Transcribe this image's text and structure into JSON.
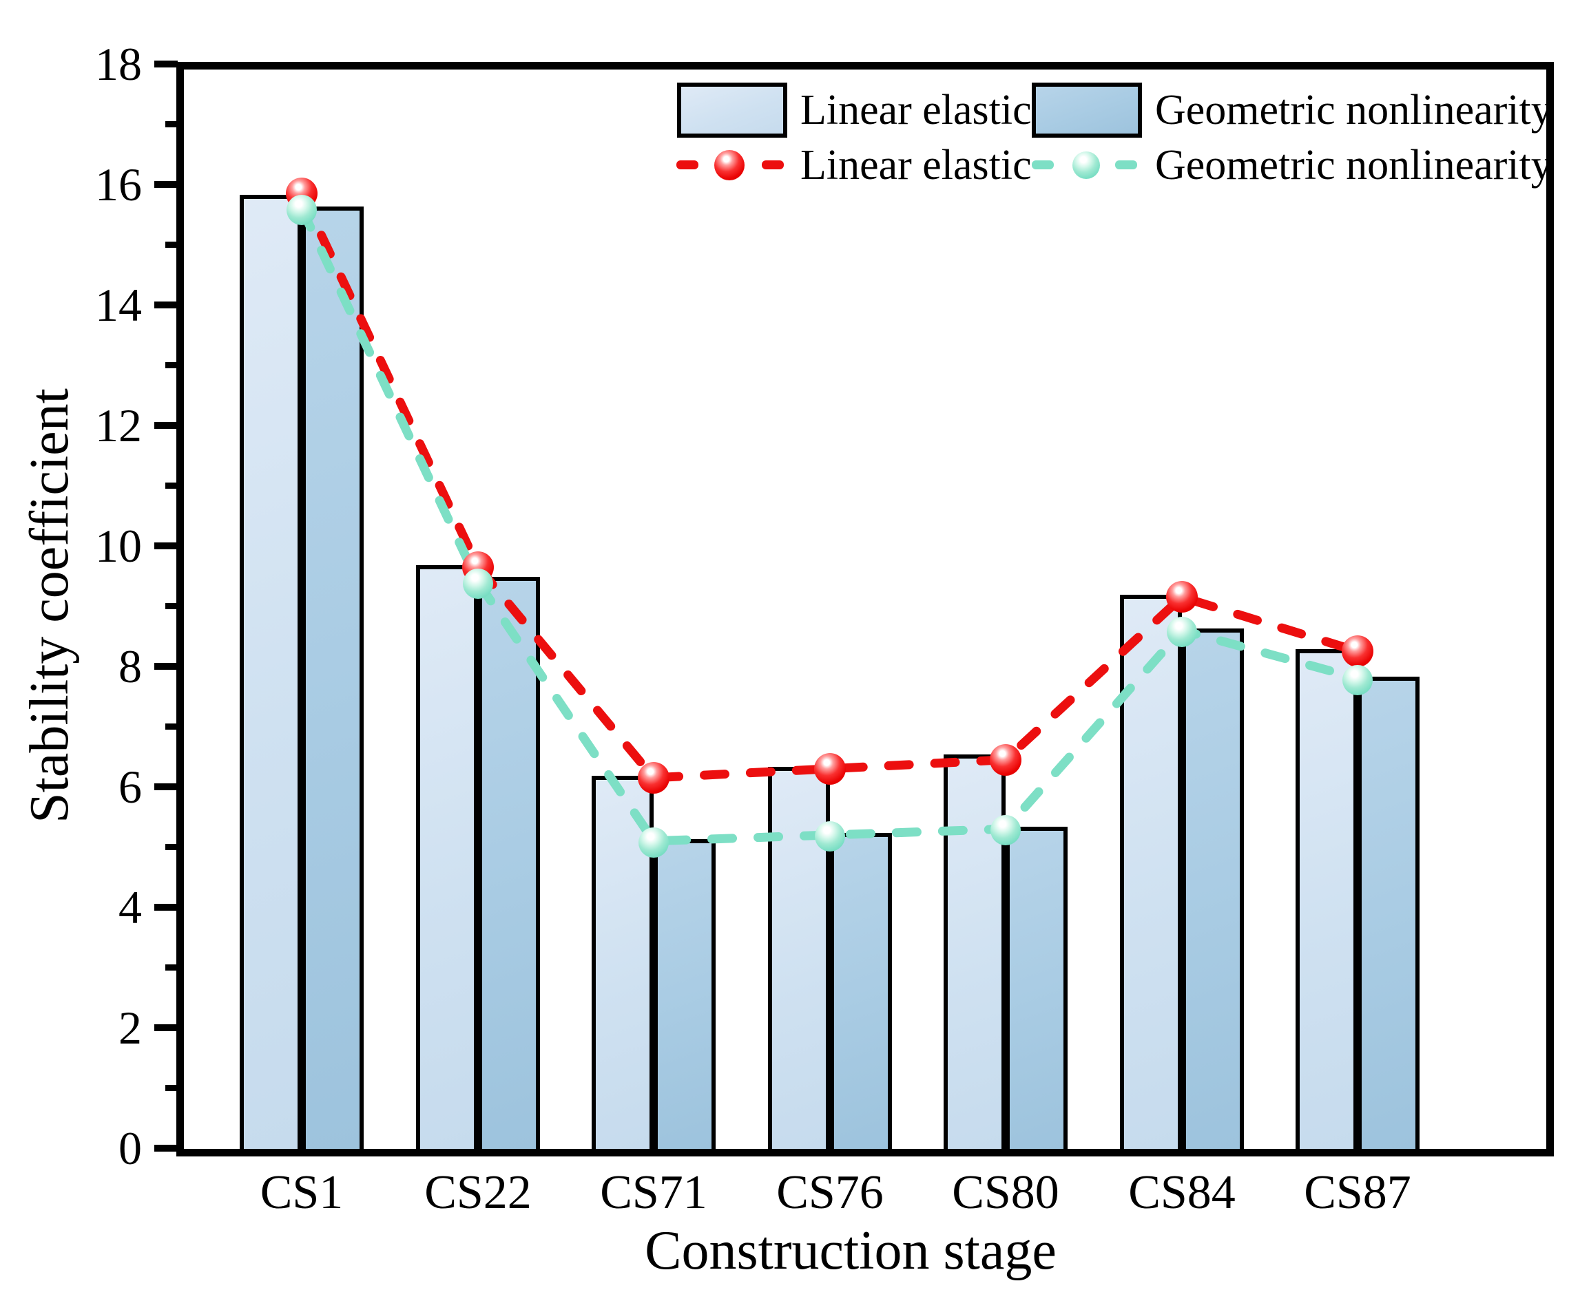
{
  "figure": {
    "background": "#ffffff"
  },
  "chart_data": {
    "type": "bar+line",
    "xlabel": "Construction stage",
    "ylabel": "Stability coefficient",
    "categories": [
      "CS1",
      "CS22",
      "CS71",
      "CS76",
      "CS80",
      "CS84",
      "CS87"
    ],
    "ylim": [
      0,
      18
    ],
    "yticks": [
      0,
      2,
      4,
      6,
      8,
      10,
      12,
      14,
      16,
      18
    ],
    "minor_tick_step": 1,
    "grid": false,
    "legend_position": "top-right-inside",
    "bar_series": [
      {
        "name": "Linear elastic",
        "values": [
          15.8,
          9.65,
          6.15,
          6.3,
          6.5,
          9.15,
          8.25
        ],
        "fill": "#d4e3f3",
        "border": "#000000"
      },
      {
        "name": "Geometric nonlinearity",
        "values": [
          15.6,
          9.45,
          5.1,
          5.2,
          5.3,
          8.6,
          7.8
        ],
        "fill": "#a8cbe3",
        "border": "#000000"
      }
    ],
    "line_series": [
      {
        "name": "Linear elastic",
        "values": [
          15.85,
          9.65,
          6.15,
          6.3,
          6.45,
          9.15,
          8.25
        ],
        "color": "#ec0f0f",
        "style": "dashed",
        "marker": "sphere"
      },
      {
        "name": "Geometric nonlinearity",
        "values": [
          15.6,
          9.4,
          5.1,
          5.2,
          5.3,
          8.6,
          7.8
        ],
        "color": "#7ddfc5",
        "style": "dashed",
        "marker": "sphere"
      }
    ]
  },
  "legend": {
    "row1": [
      {
        "label": "Linear elastic",
        "swatch": "#d4e3f3"
      },
      {
        "label": "Geometric nonlinearity",
        "swatch": "#a8cbe3"
      }
    ],
    "row2": [
      {
        "label": "Linear elastic",
        "color": "#ec0f0f"
      },
      {
        "label": "Geometric nonlinearity",
        "color": "#7ddfc5"
      }
    ]
  }
}
